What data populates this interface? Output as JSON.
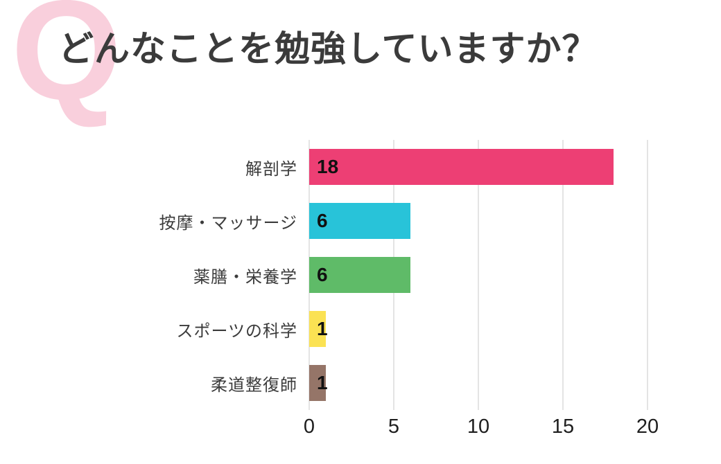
{
  "header": {
    "q_mark": "Q",
    "title": "どんなことを勉強していますか？"
  },
  "chart_data": {
    "type": "bar",
    "orientation": "horizontal",
    "title": "どんなことを勉強していますか？",
    "categories": [
      "解剖学",
      "按摩・マッサージ",
      "薬膳・栄養学",
      "スポーツの科学",
      "柔道整復師"
    ],
    "values": [
      18,
      6,
      6,
      1,
      1
    ],
    "value_labels": [
      "18",
      "6",
      "6",
      "1",
      "1"
    ],
    "bar_colors": [
      "#ED3F74",
      "#28C3D9",
      "#5FBB68",
      "#FBE253",
      "#957568"
    ],
    "x_ticks": [
      "0",
      "5",
      "10",
      "15",
      "20"
    ],
    "xlim": [
      0,
      20
    ],
    "xlabel": "",
    "ylabel": "",
    "grid": true,
    "legend": "none",
    "value_label_position": "inside-start"
  },
  "colors": {
    "q_watermark": "#F9CFDC",
    "title_text": "#3B3B3B",
    "category_text": "#3B3B3B",
    "value_text": "#111111",
    "tick_text": "#1E1E1E",
    "gridline": "#E4E4E4",
    "background": "#FFFFFF"
  }
}
